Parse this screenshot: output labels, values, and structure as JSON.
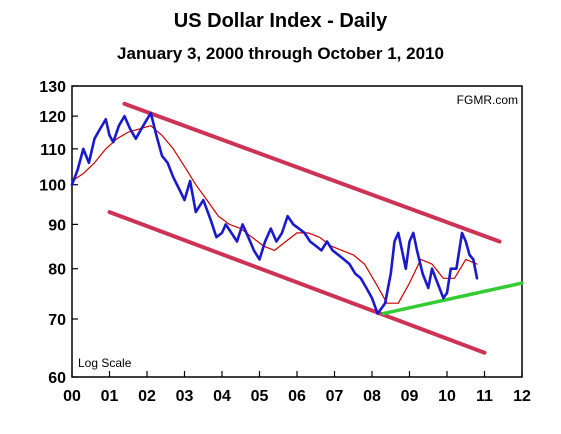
{
  "chart_data": {
    "type": "line",
    "title": "US Dollar Index - Daily",
    "subtitle": "January 3, 2000 through October 1,  2010",
    "watermark": "FGMR.com",
    "scale_note": "Log Scale",
    "y_scale": "log",
    "ylim": [
      60,
      130
    ],
    "xlim": [
      0,
      12
    ],
    "y_ticks": [
      "60",
      "70",
      "80",
      "90",
      "100",
      "110",
      "120",
      "130"
    ],
    "x_ticks": [
      "00",
      "01",
      "02",
      "03",
      "04",
      "05",
      "06",
      "07",
      "08",
      "09",
      "10",
      "11",
      "12"
    ],
    "grid": false,
    "colors": {
      "price": "#1a1acc",
      "average": "#cc0000",
      "channel": "#cc3355",
      "support": "#33cc33"
    },
    "series": [
      {
        "role": "price",
        "x": [
          0.0,
          0.15,
          0.3,
          0.45,
          0.6,
          0.75,
          0.9,
          1.0,
          1.1,
          1.25,
          1.4,
          1.55,
          1.7,
          1.85,
          2.0,
          2.1,
          2.25,
          2.4,
          2.55,
          2.7,
          2.85,
          3.0,
          3.15,
          3.3,
          3.5,
          3.7,
          3.85,
          4.0,
          4.1,
          4.25,
          4.4,
          4.55,
          4.7,
          4.85,
          5.0,
          5.15,
          5.3,
          5.45,
          5.6,
          5.75,
          5.9,
          6.05,
          6.2,
          6.35,
          6.5,
          6.65,
          6.8,
          6.95,
          7.1,
          7.25,
          7.4,
          7.55,
          7.7,
          7.85,
          8.0,
          8.15,
          8.25,
          8.35,
          8.5,
          8.6,
          8.7,
          8.8,
          8.9,
          9.0,
          9.1,
          9.2,
          9.35,
          9.5,
          9.6,
          9.7,
          9.8,
          9.9,
          10.0,
          10.1,
          10.25,
          10.4,
          10.5,
          10.6,
          10.7,
          10.8
        ],
        "values": [
          100,
          104,
          110,
          106,
          113,
          116,
          119,
          114,
          112,
          117,
          120,
          116,
          113,
          116,
          119,
          121,
          114,
          108,
          106,
          102,
          99,
          96,
          101,
          93,
          96,
          91,
          87,
          88,
          90,
          88,
          86,
          90,
          87,
          84,
          82,
          86,
          89,
          86,
          88,
          92,
          90,
          89,
          88,
          86,
          85,
          84,
          86,
          84,
          83,
          82,
          81,
          79,
          78,
          76,
          74,
          71,
          72,
          73,
          79,
          86,
          88,
          84,
          80,
          86,
          88,
          84,
          79,
          76,
          80,
          78,
          76,
          74,
          75,
          80,
          80,
          88,
          86,
          83,
          82,
          78
        ]
      },
      {
        "role": "average",
        "x": [
          0.0,
          0.3,
          0.6,
          0.9,
          1.2,
          1.5,
          1.8,
          2.1,
          2.4,
          2.7,
          3.0,
          3.3,
          3.6,
          3.9,
          4.2,
          4.5,
          4.8,
          5.1,
          5.4,
          5.7,
          6.0,
          6.3,
          6.6,
          6.9,
          7.2,
          7.5,
          7.8,
          8.1,
          8.4,
          8.7,
          9.0,
          9.3,
          9.6,
          9.9,
          10.2,
          10.5,
          10.8
        ],
        "values": [
          101,
          103,
          106,
          110,
          113,
          115,
          116,
          117,
          114,
          110,
          105,
          100,
          96,
          92,
          90,
          89,
          87,
          85,
          84,
          86,
          88,
          88,
          87,
          85,
          84,
          83,
          81,
          77,
          73,
          73,
          77,
          82,
          81,
          78,
          78,
          82,
          81
        ]
      },
      {
        "role": "upper-channel",
        "x": [
          1.4,
          11.4
        ],
        "values": [
          124,
          86
        ]
      },
      {
        "role": "lower-channel",
        "x": [
          1.0,
          11.0
        ],
        "values": [
          93,
          64
        ]
      },
      {
        "role": "support",
        "x": [
          8.3,
          12.0
        ],
        "values": [
          71,
          77
        ]
      }
    ]
  }
}
